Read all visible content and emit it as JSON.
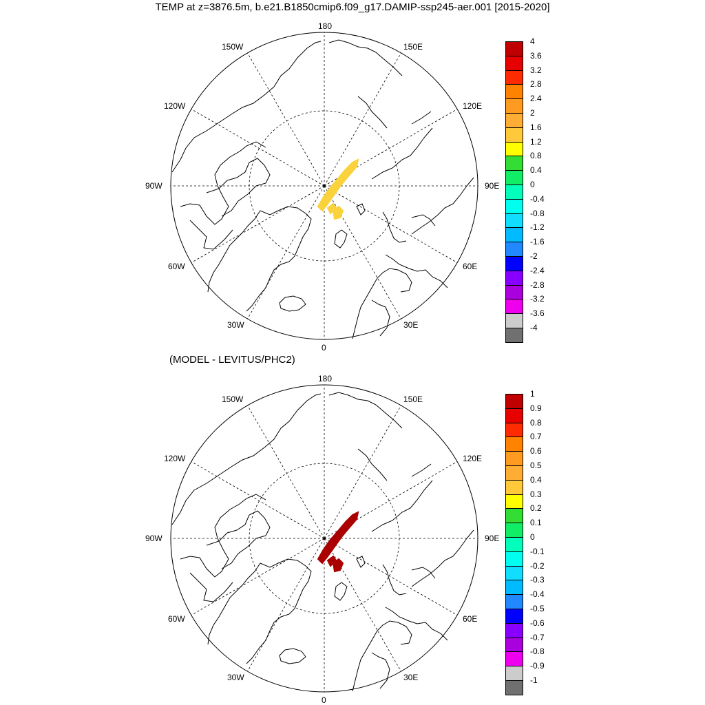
{
  "title": "TEMP at z=3876.5m, b.e21.B1850cmip6.f09_g17.DAMIP-ssp245-aer.001 [2015-2020]",
  "subtitle": "(MODEL - LEVITUS/PHC2)",
  "lon_labels": {
    "top": "180",
    "bottom": "0",
    "left": "90W",
    "right": "90E",
    "ul1": "150W",
    "ul2": "120W",
    "ur1": "150E",
    "ur2": "120E",
    "ll1": "60W",
    "ll2": "30W",
    "lr1": "60E",
    "lr2": "30E"
  },
  "panels": [
    {
      "name": "model",
      "anomaly_color": "#f9d23c",
      "colorbar": {
        "labels": [
          "4",
          "3.6",
          "3.2",
          "2.8",
          "2.4",
          "2",
          "1.6",
          "1.2",
          "0.8",
          "0.4",
          "0",
          "-0.4",
          "-0.8",
          "-1.2",
          "-1.6",
          "-2",
          "-2.4",
          "-2.8",
          "-3.2",
          "-3.6",
          "-4"
        ],
        "colors": [
          "#c00000",
          "#e60000",
          "#ff2b00",
          "#ff8200",
          "#ff9b20",
          "#ffad34",
          "#ffc93a",
          "#ffff00",
          "#33dd33",
          "#11ee66",
          "#00ffbb",
          "#00ffee",
          "#11ddff",
          "#00bbff",
          "#2288ff",
          "#0000ff",
          "#8800ff",
          "#aa00dd",
          "#ee00ee",
          "#cccccc",
          "#707070"
        ]
      }
    },
    {
      "name": "difference",
      "anomaly_color": "#aa0000",
      "colorbar": {
        "labels": [
          "1",
          "0.9",
          "0.8",
          "0.7",
          "0.6",
          "0.5",
          "0.4",
          "0.3",
          "0.2",
          "0.1",
          "0",
          "-0.1",
          "-0.2",
          "-0.3",
          "-0.4",
          "-0.5",
          "-0.6",
          "-0.7",
          "-0.8",
          "-0.9",
          "-1"
        ],
        "colors": [
          "#c00000",
          "#e60000",
          "#ff2b00",
          "#ff8200",
          "#ff9b20",
          "#ffad34",
          "#ffc93a",
          "#ffff00",
          "#33dd33",
          "#11ee66",
          "#00ffbb",
          "#00ffee",
          "#11ddff",
          "#00bbff",
          "#2288ff",
          "#0000ff",
          "#8800ff",
          "#aa00dd",
          "#ee00ee",
          "#cccccc",
          "#707070"
        ]
      }
    }
  ]
}
